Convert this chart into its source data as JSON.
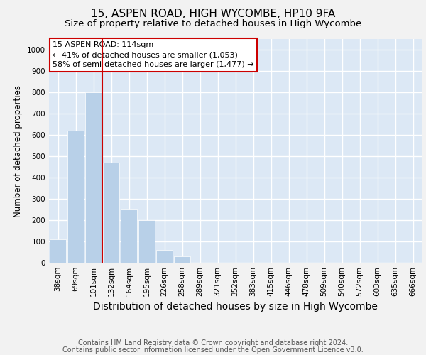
{
  "title1": "15, ASPEN ROAD, HIGH WYCOMBE, HP10 9FA",
  "title2": "Size of property relative to detached houses in High Wycombe",
  "xlabel": "Distribution of detached houses by size in High Wycombe",
  "ylabel": "Number of detached properties",
  "footer1": "Contains HM Land Registry data © Crown copyright and database right 2024.",
  "footer2": "Contains public sector information licensed under the Open Government Licence v3.0.",
  "categories": [
    "38sqm",
    "69sqm",
    "101sqm",
    "132sqm",
    "164sqm",
    "195sqm",
    "226sqm",
    "258sqm",
    "289sqm",
    "321sqm",
    "352sqm",
    "383sqm",
    "415sqm",
    "446sqm",
    "478sqm",
    "509sqm",
    "540sqm",
    "572sqm",
    "603sqm",
    "635sqm",
    "666sqm"
  ],
  "values": [
    110,
    620,
    800,
    470,
    250,
    200,
    60,
    30,
    0,
    0,
    0,
    0,
    0,
    0,
    0,
    0,
    0,
    0,
    0,
    0,
    0
  ],
  "bar_color": "#b8d0e8",
  "vline_color": "#cc0000",
  "vline_x": 2.5,
  "annotation_text": "15 ASPEN ROAD: 114sqm\n← 41% of detached houses are smaller (1,053)\n58% of semi-detached houses are larger (1,477) →",
  "annotation_box_color": "#ffffff",
  "annotation_box_edge_color": "#cc0000",
  "ylim": [
    0,
    1050
  ],
  "yticks": [
    0,
    100,
    200,
    300,
    400,
    500,
    600,
    700,
    800,
    900,
    1000
  ],
  "fig_facecolor": "#f2f2f2",
  "plot_facecolor": "#dce8f5",
  "grid_color": "#ffffff",
  "title1_fontsize": 11,
  "title2_fontsize": 9.5,
  "xlabel_fontsize": 10,
  "ylabel_fontsize": 8.5,
  "tick_fontsize": 7.5,
  "footer_fontsize": 7,
  "annotation_fontsize": 8
}
